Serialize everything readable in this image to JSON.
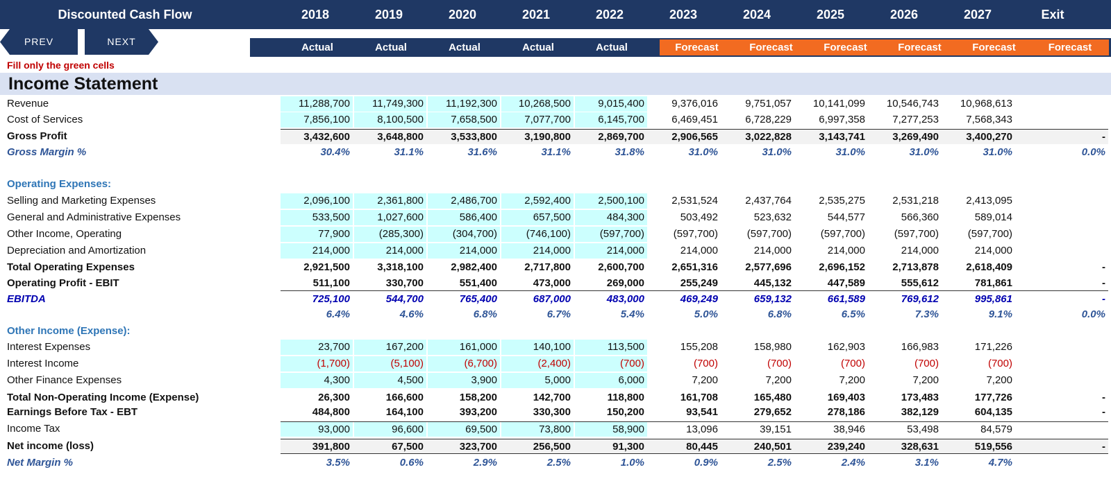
{
  "header": {
    "title": "Discounted Cash Flow",
    "years": [
      "2018",
      "2019",
      "2020",
      "2021",
      "2022",
      "2023",
      "2024",
      "2025",
      "2026",
      "2027",
      "Exit"
    ],
    "types": [
      "Actual",
      "Actual",
      "Actual",
      "Actual",
      "Actual",
      "Forecast",
      "Forecast",
      "Forecast",
      "Forecast",
      "Forecast",
      "Forecast"
    ]
  },
  "nav": {
    "prev": "PREV",
    "next": "NEXT"
  },
  "note": "Fill only the green cells",
  "section_title": "Income Statement",
  "colors": {
    "navy": "#1f3864",
    "forecast": "#f26b21",
    "input_green": "#ccfffe",
    "note_red": "#c00000",
    "section_bg": "#d9e1f2"
  },
  "rows": {
    "revenue": {
      "label": "Revenue",
      "values": [
        "11,288,700",
        "11,749,300",
        "11,192,300",
        "10,268,500",
        "9,015,400",
        "9,376,016",
        "9,751,057",
        "10,141,099",
        "10,546,743",
        "10,968,613",
        ""
      ]
    },
    "cos": {
      "label": "Cost of Services",
      "values": [
        "7,856,100",
        "8,100,500",
        "7,658,500",
        "7,077,700",
        "6,145,700",
        "6,469,451",
        "6,728,229",
        "6,997,358",
        "7,277,253",
        "7,568,343",
        ""
      ]
    },
    "gross_profit": {
      "label": "Gross Profit",
      "values": [
        "3,432,600",
        "3,648,800",
        "3,533,800",
        "3,190,800",
        "2,869,700",
        "2,906,565",
        "3,022,828",
        "3,143,741",
        "3,269,490",
        "3,400,270",
        "-"
      ]
    },
    "gross_margin": {
      "label": "Gross Margin %",
      "values": [
        "30.4%",
        "31.1%",
        "31.6%",
        "31.1%",
        "31.8%",
        "31.0%",
        "31.0%",
        "31.0%",
        "31.0%",
        "31.0%",
        "0.0%"
      ]
    },
    "opex_header": {
      "label": "Operating Expenses:"
    },
    "selling": {
      "label": "Selling and Marketing Expenses",
      "values": [
        "2,096,100",
        "2,361,800",
        "2,486,700",
        "2,592,400",
        "2,500,100",
        "2,531,524",
        "2,437,764",
        "2,535,275",
        "2,531,218",
        "2,413,095",
        ""
      ]
    },
    "ga": {
      "label": "General and Administrative Expenses",
      "values": [
        "533,500",
        "1,027,600",
        "586,400",
        "657,500",
        "484,300",
        "503,492",
        "523,632",
        "544,577",
        "566,360",
        "589,014",
        ""
      ]
    },
    "other_op": {
      "label": "Other Income, Operating",
      "values": [
        "77,900",
        "(285,300)",
        "(304,700)",
        "(746,100)",
        "(597,700)",
        "(597,700)",
        "(597,700)",
        "(597,700)",
        "(597,700)",
        "(597,700)",
        ""
      ]
    },
    "da": {
      "label": "Depreciation and Amortization",
      "values": [
        "214,000",
        "214,000",
        "214,000",
        "214,000",
        "214,000",
        "214,000",
        "214,000",
        "214,000",
        "214,000",
        "214,000",
        ""
      ]
    },
    "total_opex": {
      "label": "Total Operating Expenses",
      "values": [
        "2,921,500",
        "3,318,100",
        "2,982,400",
        "2,717,800",
        "2,600,700",
        "2,651,316",
        "2,577,696",
        "2,696,152",
        "2,713,878",
        "2,618,409",
        "-"
      ]
    },
    "ebit": {
      "label": "Operating Profit - EBIT",
      "values": [
        "511,100",
        "330,700",
        "551,400",
        "473,000",
        "269,000",
        "255,249",
        "445,132",
        "447,589",
        "555,612",
        "781,861",
        "-"
      ]
    },
    "ebitda": {
      "label": "EBITDA",
      "values": [
        "725,100",
        "544,700",
        "765,400",
        "687,000",
        "483,000",
        "469,249",
        "659,132",
        "661,589",
        "769,612",
        "995,861",
        "-"
      ]
    },
    "ebitda_margin": {
      "label": "",
      "values": [
        "6.4%",
        "4.6%",
        "6.8%",
        "6.7%",
        "5.4%",
        "5.0%",
        "6.8%",
        "6.5%",
        "7.3%",
        "9.1%",
        "0.0%"
      ]
    },
    "other_header": {
      "label": "Other Income (Expense):"
    },
    "int_exp": {
      "label": "Interest Expenses",
      "values": [
        "23,700",
        "167,200",
        "161,000",
        "140,100",
        "113,500",
        "155,208",
        "158,980",
        "162,903",
        "166,983",
        "171,226",
        ""
      ]
    },
    "int_inc": {
      "label": "Interest Income",
      "values": [
        "(1,700)",
        "(5,100)",
        "(6,700)",
        "(2,400)",
        "(700)",
        "(700)",
        "(700)",
        "(700)",
        "(700)",
        "(700)",
        ""
      ]
    },
    "other_fin": {
      "label": "Other Finance Expenses",
      "values": [
        "4,300",
        "4,500",
        "3,900",
        "5,000",
        "6,000",
        "7,200",
        "7,200",
        "7,200",
        "7,200",
        "7,200",
        ""
      ]
    },
    "total_nonop": {
      "label": "Total Non-Operating Income (Expense)",
      "values": [
        "26,300",
        "166,600",
        "158,200",
        "142,700",
        "118,800",
        "161,708",
        "165,480",
        "169,403",
        "173,483",
        "177,726",
        "-"
      ]
    },
    "ebt": {
      "label": "Earnings Before Tax - EBT",
      "values": [
        "484,800",
        "164,100",
        "393,200",
        "330,300",
        "150,200",
        "93,541",
        "279,652",
        "278,186",
        "382,129",
        "604,135",
        "-"
      ]
    },
    "tax": {
      "label": "Income Tax",
      "values": [
        "93,000",
        "96,600",
        "69,500",
        "73,800",
        "58,900",
        "13,096",
        "39,151",
        "38,946",
        "53,498",
        "84,579",
        ""
      ]
    },
    "net_income": {
      "label": "Net income (loss)",
      "values": [
        "391,800",
        "67,500",
        "323,700",
        "256,500",
        "91,300",
        "80,445",
        "240,501",
        "239,240",
        "328,631",
        "519,556",
        "-"
      ]
    },
    "net_margin": {
      "label": "Net Margin %",
      "values": [
        "3.5%",
        "0.6%",
        "2.9%",
        "2.5%",
        "1.0%",
        "0.9%",
        "2.5%",
        "2.4%",
        "3.1%",
        "4.7%",
        ""
      ]
    }
  }
}
